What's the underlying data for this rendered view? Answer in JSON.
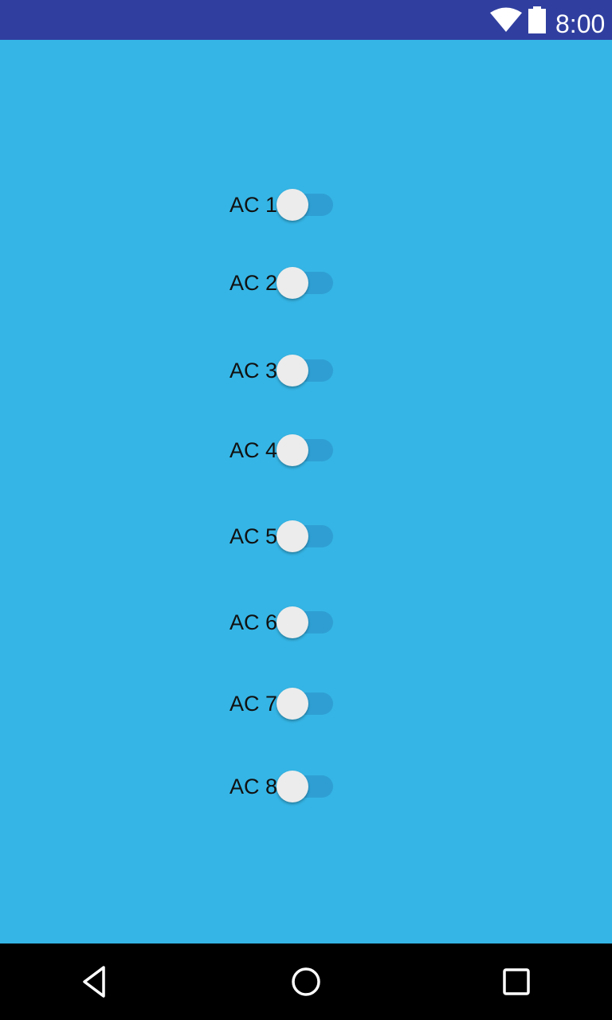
{
  "status_bar": {
    "time": "8:00",
    "icons": [
      "wifi-icon",
      "battery-icon"
    ],
    "background": "#303f9f"
  },
  "screen": {
    "background": "#35b5e5"
  },
  "switches": [
    {
      "label": "AC 1",
      "checked": false
    },
    {
      "label": "AC 2",
      "checked": false
    },
    {
      "label": "AC 3",
      "checked": false
    },
    {
      "label": "AC 4",
      "checked": false
    },
    {
      "label": "AC 5",
      "checked": false
    },
    {
      "label": "AC 6",
      "checked": false
    },
    {
      "label": "AC 7",
      "checked": false
    },
    {
      "label": "AC 8",
      "checked": false
    }
  ],
  "nav_bar": {
    "buttons": [
      "back-icon",
      "home-icon",
      "recents-icon"
    ]
  }
}
